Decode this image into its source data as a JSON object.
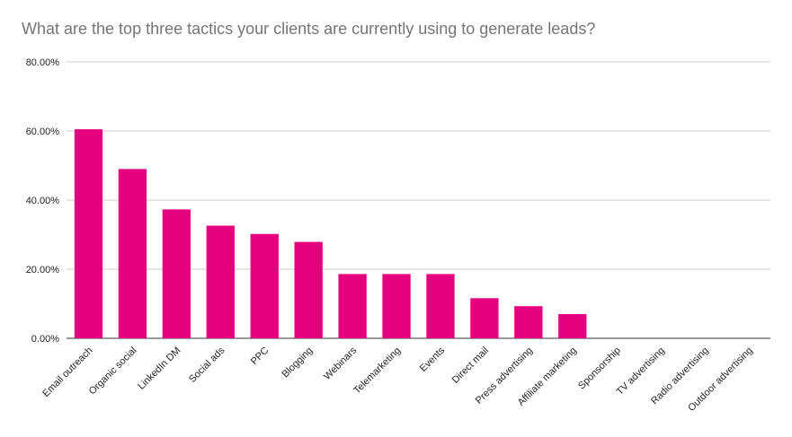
{
  "chart_data": {
    "type": "bar",
    "title": "What are the top three tactics your clients are currently using to generate leads?",
    "xlabel": "",
    "ylabel": "",
    "ylim": [
      0,
      80
    ],
    "y_ticks": [
      0,
      20,
      40,
      60,
      80
    ],
    "y_tick_labels": [
      "0.00%",
      "20.00%",
      "40.00%",
      "60.00%",
      "80.00%"
    ],
    "grid": true,
    "legend": "none",
    "bar_color": "#e5007e",
    "categories": [
      "Email outreach",
      "Organic social",
      "LinkedIn DM",
      "Social ads",
      "PPC",
      "Blogging",
      "Webinars",
      "Telemarketing",
      "Events",
      "Direct mail",
      "Press advertising",
      "Affiliate marketing",
      "Sponsorship",
      "TV advertising",
      "Radio advertising",
      "Outdoor advertising"
    ],
    "values": [
      60.5,
      49,
      37.3,
      32.6,
      30.2,
      27.9,
      18.6,
      18.6,
      18.6,
      11.6,
      9.3,
      7,
      0,
      0,
      0,
      0
    ]
  }
}
